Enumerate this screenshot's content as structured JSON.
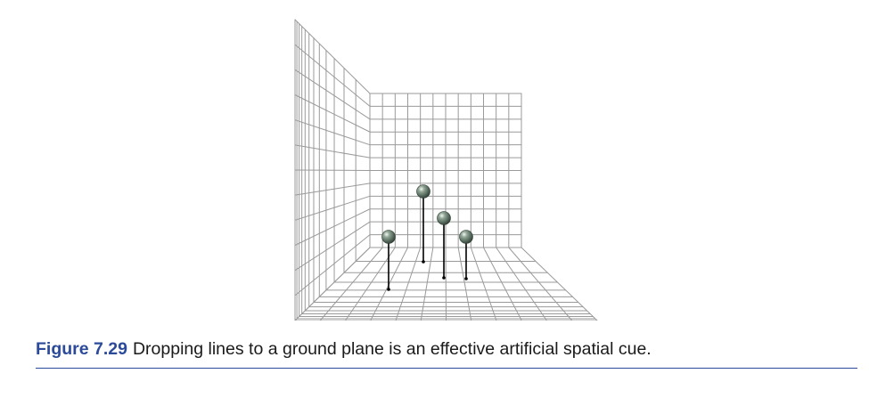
{
  "figure": {
    "label": "Figure 7.29",
    "caption": "Dropping lines to a ground plane is an effective artificial spatial cue.",
    "grid_color": "#9a9a9a",
    "accent_color": "#2b4a99",
    "sphere_color": "#5b7060",
    "drop_line_color": "#000000",
    "grid_divisions": 12,
    "sphere_count": 4
  }
}
